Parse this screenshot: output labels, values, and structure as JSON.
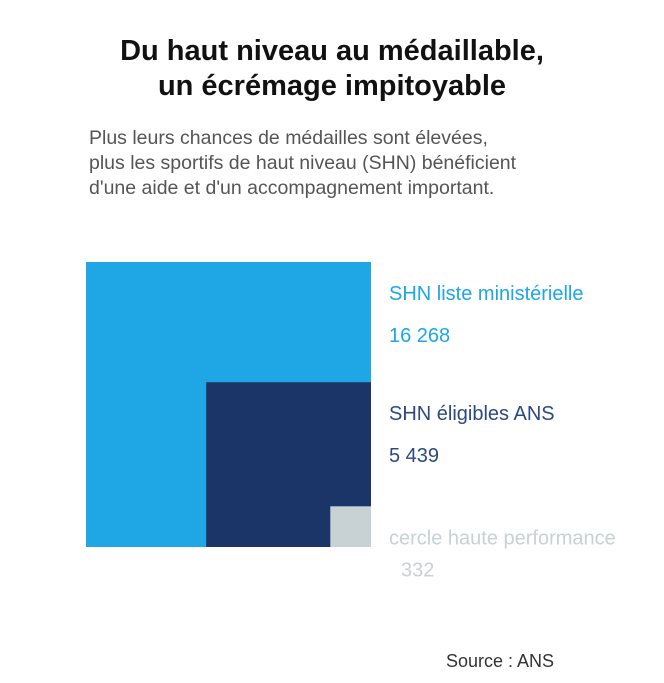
{
  "header": {
    "title_line1": "Du haut niveau au médaillable,",
    "title_line2": "un écrémage impitoyable",
    "subtitle_line1": "Plus leurs chances de médailles sont élevées,",
    "subtitle_line2": "plus les sportifs de haut niveau (SHN) bénéficient",
    "subtitle_line3": "d'une aide et d'un accompagnement important."
  },
  "chart_data": {
    "type": "nested-area",
    "series": [
      {
        "name": "SHN liste ministérielle",
        "value": 16268,
        "value_label": "16 268",
        "color": "#1ea7e4"
      },
      {
        "name": "SHN éligibles ANS",
        "value": 5439,
        "value_label": "5 439",
        "color": "#1c3568"
      },
      {
        "name": "cercle haute performance",
        "value": 332,
        "value_label": "332",
        "color": "#c8d1d4"
      }
    ],
    "label_colors": [
      "#1ea7e4",
      "#2c4a7e",
      "#c8d1d4"
    ]
  },
  "footer": {
    "source": "Source : ANS"
  }
}
